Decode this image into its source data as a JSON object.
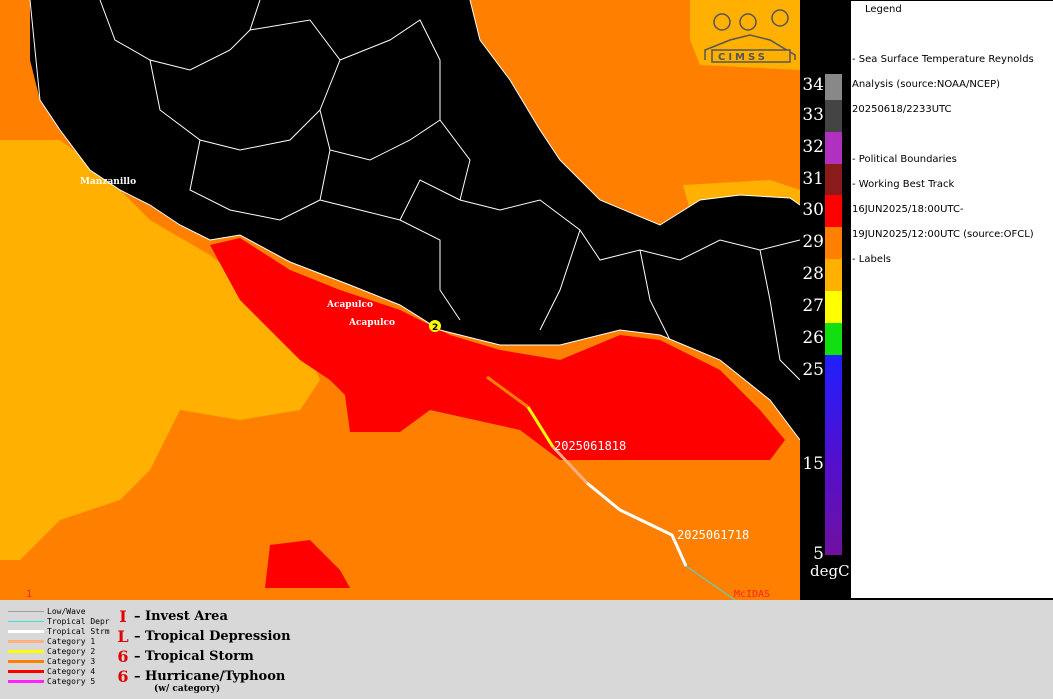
{
  "map": {
    "cities": [
      {
        "name": "Manzanillo"
      },
      {
        "name": "Acapulco"
      },
      {
        "name": "Acapulco"
      }
    ],
    "track_labels": [
      "2025061818",
      "2025061718"
    ],
    "storm_marker": "2",
    "corner_number": "1",
    "mcidas_label": "McIDAS",
    "logo_text": "CIMSS"
  },
  "temperature_scale": {
    "unit": "degC",
    "labels": [
      "34",
      "33",
      "32",
      "31",
      "30",
      "29",
      "28",
      "27",
      "26",
      "25",
      "15",
      "5"
    ],
    "bands": [
      {
        "color": "#888888"
      },
      {
        "color": "#444444"
      },
      {
        "color": "#b030c0"
      },
      {
        "color": "#8b1a1a"
      },
      {
        "color": "#ff0000"
      },
      {
        "color": "#ff8000"
      },
      {
        "color": "#ffb000"
      },
      {
        "color": "#ffff00"
      },
      {
        "color": "#10e010"
      },
      {
        "color": "#2020ff"
      }
    ]
  },
  "legend": {
    "title": "Legend",
    "lines": [
      "-  Sea Surface Temperature  Reynolds",
      "Analysis  (source:NOAA/NCEP)",
      "20250618/2233UTC",
      "-  Political Boundaries",
      "-  Working Best Track",
      "16JUN2025/18:00UTC-",
      "19JUN2025/12:00UTC   (source:OFCL)",
      "-  Labels"
    ]
  },
  "track_key": [
    {
      "label": "Low/Wave",
      "color": "#a0a0a0"
    },
    {
      "label": "Tropical Depr",
      "color": "#40e0e0"
    },
    {
      "label": "Tropical Strm",
      "color": "#ffffff"
    },
    {
      "label": "Category 1",
      "color": "#ffb080"
    },
    {
      "label": "Category 2",
      "color": "#ffff00"
    },
    {
      "label": "Category 3",
      "color": "#ff8000"
    },
    {
      "label": "Category 4",
      "color": "#ff0000"
    },
    {
      "label": "Category 5",
      "color": "#ff20ff"
    }
  ],
  "symbol_key": [
    {
      "icon": "I",
      "label": "– Invest Area"
    },
    {
      "icon": "L",
      "label": "– Tropical Depression"
    },
    {
      "icon": "6",
      "label": "– Tropical Storm"
    },
    {
      "icon": "6",
      "label": "– Hurricane/Typhoon"
    }
  ],
  "symbol_key_note": "(w/ category)"
}
